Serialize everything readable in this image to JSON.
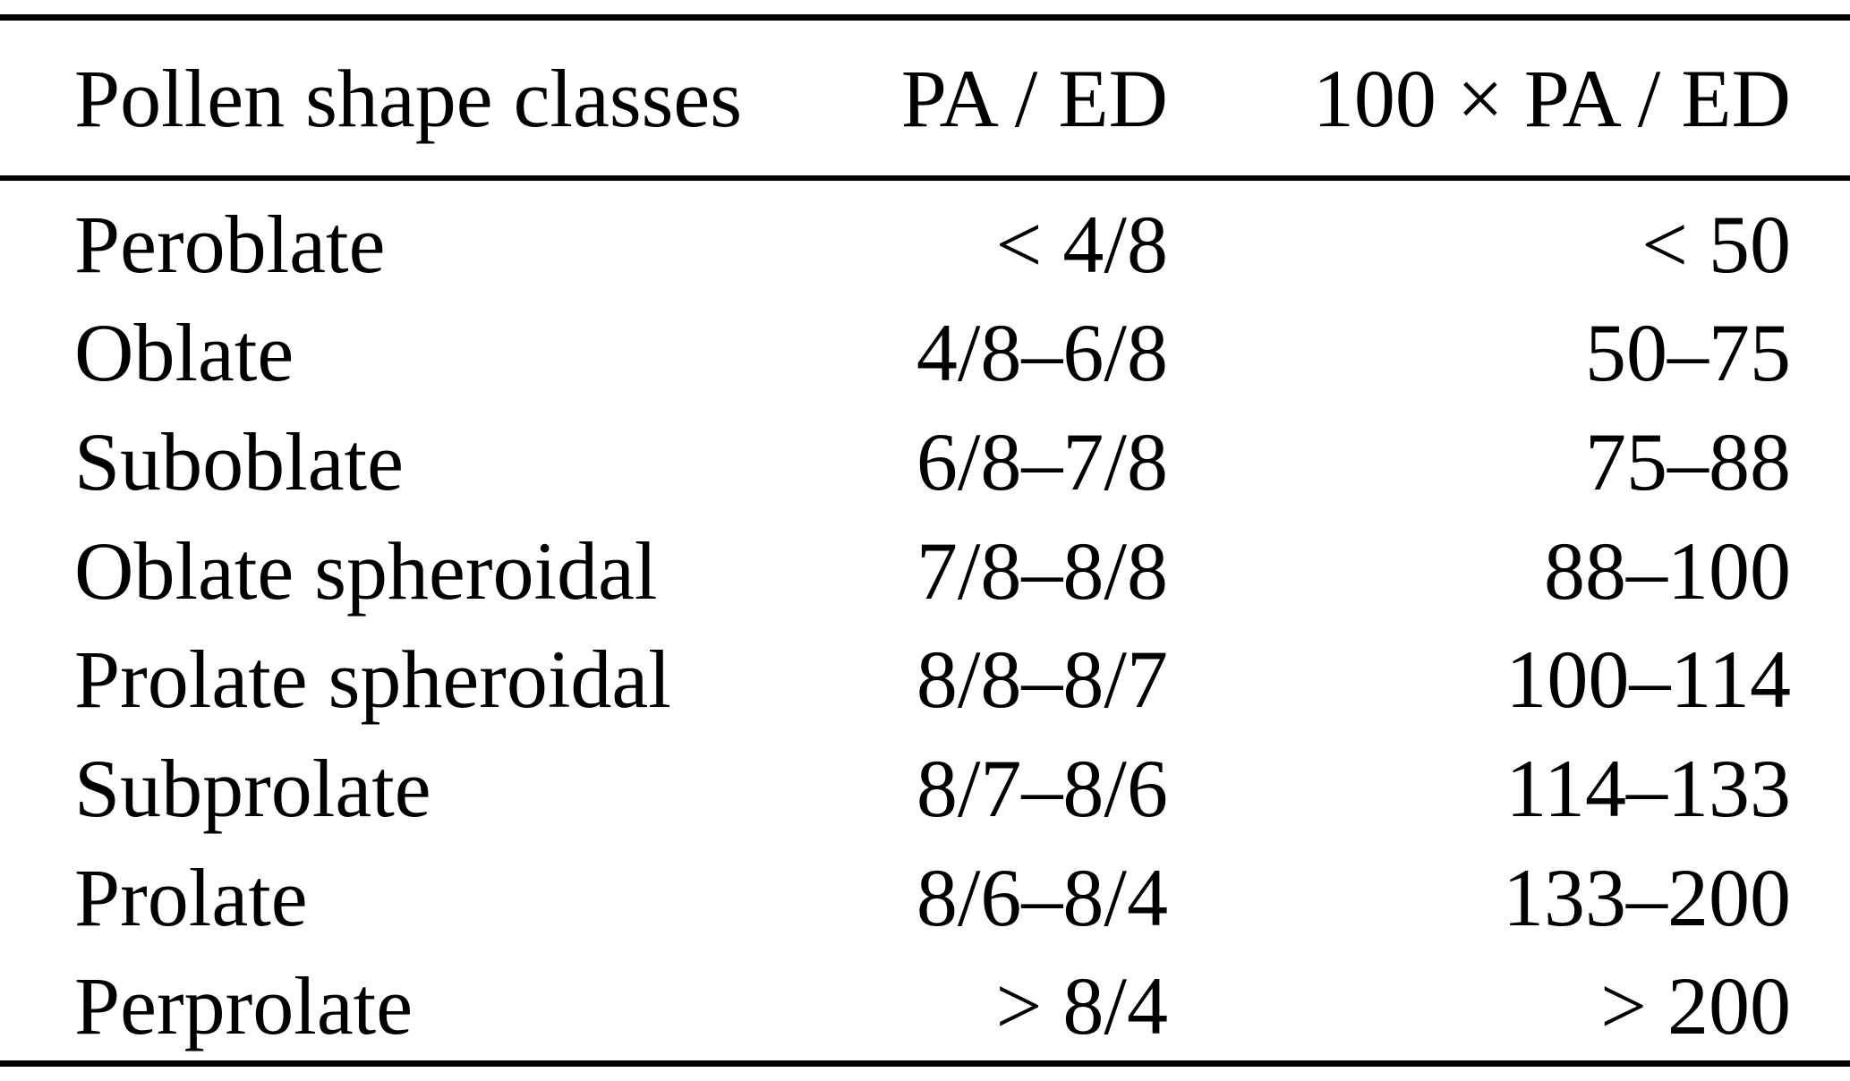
{
  "table": {
    "columns": [
      {
        "label": "Pollen shape classes",
        "align": "left"
      },
      {
        "label": "PA / ED",
        "align": "right"
      },
      {
        "label": "100 × PA / ED",
        "align": "right"
      }
    ],
    "rows": [
      {
        "shape_class": "Peroblate",
        "pa_ed": "< 4/8",
        "ratio_100": "< 50"
      },
      {
        "shape_class": "Oblate",
        "pa_ed": "4/8–6/8",
        "ratio_100": "50–75"
      },
      {
        "shape_class": "Suboblate",
        "pa_ed": "6/8–7/8",
        "ratio_100": "75–88"
      },
      {
        "shape_class": "Oblate spheroidal",
        "pa_ed": "7/8–8/8",
        "ratio_100": "88–100"
      },
      {
        "shape_class": "Prolate spheroidal",
        "pa_ed": "8/8–8/7",
        "ratio_100": "100–114"
      },
      {
        "shape_class": "Subprolate",
        "pa_ed": "8/7–8/6",
        "ratio_100": "114–133"
      },
      {
        "shape_class": "Prolate",
        "pa_ed": "8/6–8/4",
        "ratio_100": "133–200"
      },
      {
        "shape_class": "Perprolate",
        "pa_ed": "> 8/4",
        "ratio_100": "> 200"
      }
    ]
  },
  "colors": {
    "text": "#000000",
    "background": "#ffffff",
    "rule": "#000000"
  }
}
